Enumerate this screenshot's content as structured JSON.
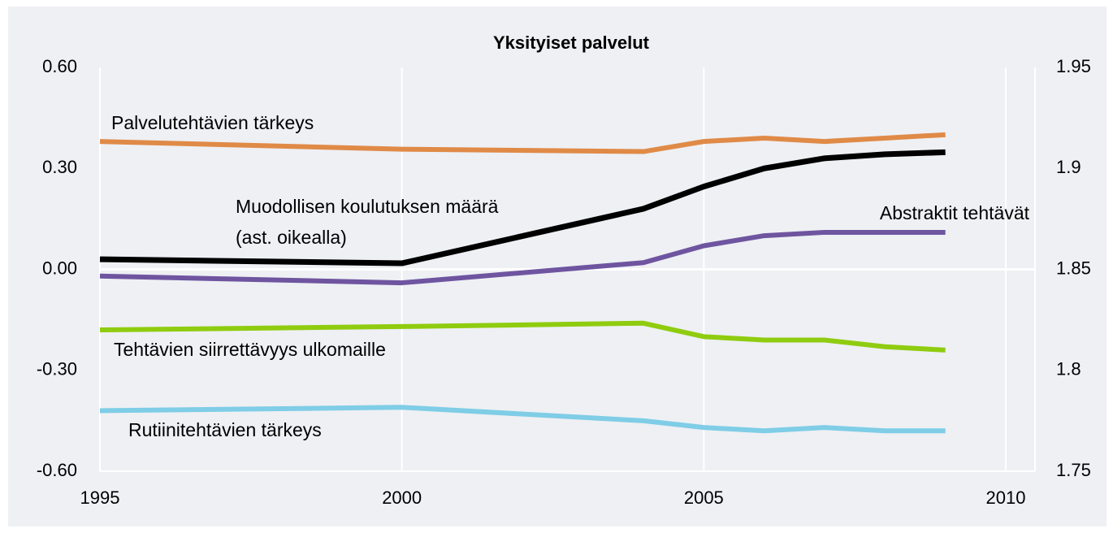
{
  "chart_data": {
    "type": "line",
    "title": "Yksityiset palvelut",
    "x": [
      1995,
      2000,
      2004,
      2005,
      2006,
      2007,
      2008,
      2009
    ],
    "xlim": [
      1995,
      2010
    ],
    "xticks": [
      1995,
      2000,
      2005,
      2010
    ],
    "ylim": [
      -0.6,
      0.6
    ],
    "yticks": [
      {
        "value": 0.6,
        "label": "0.60"
      },
      {
        "value": 0.3,
        "label": "0.30"
      },
      {
        "value": 0,
        "label": "0.00"
      },
      {
        "value": -0.3,
        "label": "-0.30"
      },
      {
        "value": -0.6,
        "label": "-0.60"
      }
    ],
    "y2lim": [
      1.75,
      1.95
    ],
    "y2ticks": [
      1.95,
      1.9,
      1.85,
      1.8,
      1.75
    ],
    "grid": "x",
    "annotations": [
      "(ast. oikealla)"
    ],
    "series": [
      {
        "name": "Palvelutehtävien tärkeys",
        "color": "#e08a47",
        "values": [
          0.38,
          0.357,
          0.35,
          0.38,
          0.39,
          0.38,
          0.39,
          0.4
        ]
      },
      {
        "name": "Muodollisen koulutuksen määrä",
        "color": "#000000",
        "axis": "y2",
        "values": [
          1.855,
          1.853,
          1.88,
          1.891,
          1.9,
          1.905,
          1.907,
          1.908
        ]
      },
      {
        "name": "Abstraktit tehtävät",
        "color": "#6f55a0",
        "values": [
          -0.02,
          -0.04,
          0.02,
          0.07,
          0.1,
          0.11,
          0.11,
          0.11
        ]
      },
      {
        "name": "Tehtävien siirrettävyys ulkomaille",
        "color": "#8fcc0f",
        "values": [
          -0.18,
          -0.17,
          -0.16,
          -0.2,
          -0.21,
          -0.21,
          -0.23,
          -0.24
        ]
      },
      {
        "name": "Rutiinitehtävien tärkeys",
        "color": "#7fcde6",
        "values": [
          -0.42,
          -0.41,
          -0.45,
          -0.47,
          -0.48,
          -0.47,
          -0.48,
          -0.48
        ]
      }
    ]
  }
}
